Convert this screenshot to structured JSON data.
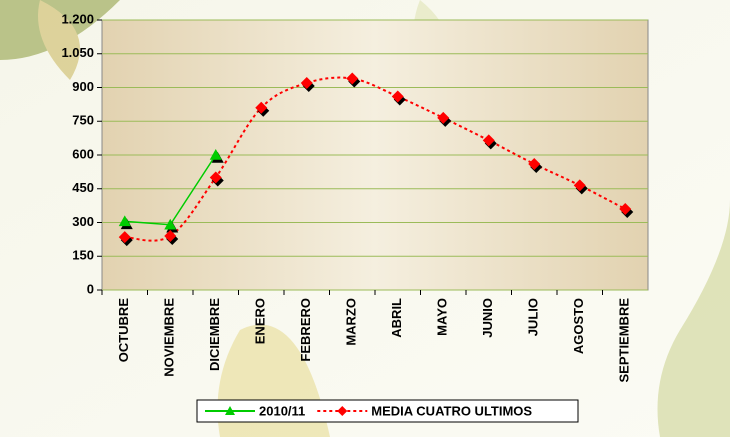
{
  "chart_data": {
    "type": "line",
    "categories": [
      "OCTUBRE",
      "NOVIEMBRE",
      "DICIEMBRE",
      "ENERO",
      "FEBRERO",
      "MARZO",
      "ABRIL",
      "MAYO",
      "JUNIO",
      "JULIO",
      "AGOSTO",
      "SEPTIEMBRE"
    ],
    "series": [
      {
        "name": "2010/11",
        "color": "#00cc00",
        "marker": "triangle",
        "dashed": false,
        "smooth": false,
        "values": [
          305,
          290,
          600,
          null,
          null,
          null,
          null,
          null,
          null,
          null,
          null,
          null
        ]
      },
      {
        "name": "MEDIA CUATRO ULTIMOS",
        "color": "#ff0000",
        "marker": "diamond",
        "dashed": true,
        "smooth": true,
        "values": [
          235,
          240,
          500,
          810,
          920,
          940,
          860,
          765,
          665,
          560,
          465,
          360
        ]
      }
    ],
    "ylim": [
      0,
      1200
    ],
    "yticks": [
      0,
      150,
      300,
      450,
      600,
      750,
      900,
      {
        "value": 1050,
        "label": "1.050"
      },
      {
        "value": 1200,
        "label": "1.200"
      }
    ],
    "grid": true,
    "legend": "bottom"
  }
}
